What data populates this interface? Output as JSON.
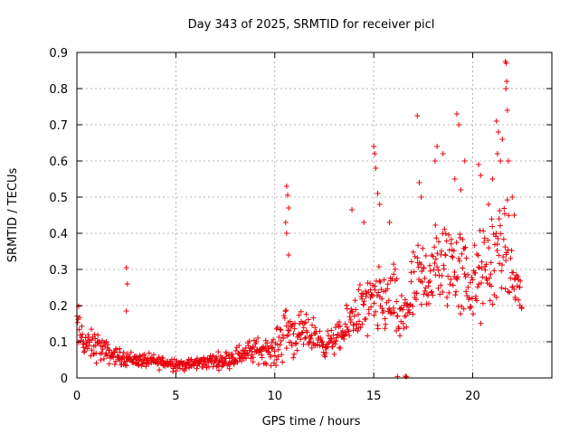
{
  "chart_data": {
    "type": "scatter",
    "title": "Day 343 of 2025, SRMTID for receiver picl",
    "xlabel": "GPS time / hours",
    "ylabel": "SRMTID / TECUs",
    "xlim": [
      0,
      24
    ],
    "ylim": [
      0,
      0.9
    ],
    "xticks": [
      0,
      5,
      10,
      15,
      20
    ],
    "xtick_labels": [
      "0",
      "5",
      "10",
      "15",
      "20"
    ],
    "yticks": [
      0,
      0.1,
      0.2,
      0.3,
      0.4,
      0.5,
      0.6,
      0.7,
      0.8,
      0.9
    ],
    "ytick_labels": [
      "0",
      "0.1",
      "0.2",
      "0.3",
      "0.4",
      "0.5",
      "0.6",
      "0.7",
      "0.8",
      "0.9"
    ],
    "grid": true,
    "marker": "+",
    "color": "#e8000b",
    "series": [
      {
        "name": "SRMTID",
        "envelope": [
          {
            "x": 0.0,
            "y": 0.14,
            "spread": 0.1
          },
          {
            "x": 0.5,
            "y": 0.09,
            "spread": 0.05
          },
          {
            "x": 1.0,
            "y": 0.09,
            "spread": 0.06
          },
          {
            "x": 1.5,
            "y": 0.07,
            "spread": 0.04
          },
          {
            "x": 2.0,
            "y": 0.06,
            "spread": 0.03
          },
          {
            "x": 3.0,
            "y": 0.05,
            "spread": 0.025
          },
          {
            "x": 4.0,
            "y": 0.045,
            "spread": 0.025
          },
          {
            "x": 5.0,
            "y": 0.04,
            "spread": 0.025
          },
          {
            "x": 5.5,
            "y": 0.035,
            "spread": 0.02
          },
          {
            "x": 6.5,
            "y": 0.045,
            "spread": 0.025
          },
          {
            "x": 7.5,
            "y": 0.05,
            "spread": 0.03
          },
          {
            "x": 8.5,
            "y": 0.07,
            "spread": 0.04
          },
          {
            "x": 9.5,
            "y": 0.08,
            "spread": 0.05
          },
          {
            "x": 10.0,
            "y": 0.07,
            "spread": 0.05
          },
          {
            "x": 10.5,
            "y": 0.14,
            "spread": 0.12
          },
          {
            "x": 11.0,
            "y": 0.12,
            "spread": 0.08
          },
          {
            "x": 12.0,
            "y": 0.12,
            "spread": 0.06
          },
          {
            "x": 12.5,
            "y": 0.09,
            "spread": 0.04
          },
          {
            "x": 13.5,
            "y": 0.12,
            "spread": 0.06
          },
          {
            "x": 14.0,
            "y": 0.18,
            "spread": 0.1
          },
          {
            "x": 15.0,
            "y": 0.2,
            "spread": 0.12
          },
          {
            "x": 16.0,
            "y": 0.22,
            "spread": 0.13
          },
          {
            "x": 16.3,
            "y": 0.15,
            "spread": 0.1
          },
          {
            "x": 17.0,
            "y": 0.24,
            "spread": 0.15
          },
          {
            "x": 18.0,
            "y": 0.3,
            "spread": 0.16
          },
          {
            "x": 19.0,
            "y": 0.32,
            "spread": 0.18
          },
          {
            "x": 20.0,
            "y": 0.25,
            "spread": 0.15
          },
          {
            "x": 21.0,
            "y": 0.32,
            "spread": 0.2
          },
          {
            "x": 21.5,
            "y": 0.38,
            "spread": 0.2
          },
          {
            "x": 22.0,
            "y": 0.28,
            "spread": 0.14
          },
          {
            "x": 22.5,
            "y": 0.22,
            "spread": 0.08
          }
        ],
        "n_points": 900,
        "outliers": [
          {
            "x": 2.5,
            "y": 0.305
          },
          {
            "x": 2.55,
            "y": 0.26
          },
          {
            "x": 2.5,
            "y": 0.185
          },
          {
            "x": 10.6,
            "y": 0.53
          },
          {
            "x": 10.65,
            "y": 0.505
          },
          {
            "x": 10.7,
            "y": 0.47
          },
          {
            "x": 10.55,
            "y": 0.43
          },
          {
            "x": 10.6,
            "y": 0.4
          },
          {
            "x": 10.7,
            "y": 0.34
          },
          {
            "x": 13.9,
            "y": 0.465
          },
          {
            "x": 14.5,
            "y": 0.43
          },
          {
            "x": 15.0,
            "y": 0.64
          },
          {
            "x": 15.05,
            "y": 0.62
          },
          {
            "x": 15.1,
            "y": 0.58
          },
          {
            "x": 15.2,
            "y": 0.51
          },
          {
            "x": 15.3,
            "y": 0.48
          },
          {
            "x": 15.8,
            "y": 0.43
          },
          {
            "x": 17.2,
            "y": 0.725
          },
          {
            "x": 17.3,
            "y": 0.54
          },
          {
            "x": 17.4,
            "y": 0.5
          },
          {
            "x": 18.2,
            "y": 0.64
          },
          {
            "x": 18.1,
            "y": 0.6
          },
          {
            "x": 18.5,
            "y": 0.62
          },
          {
            "x": 19.2,
            "y": 0.73
          },
          {
            "x": 19.3,
            "y": 0.7
          },
          {
            "x": 19.1,
            "y": 0.55
          },
          {
            "x": 19.6,
            "y": 0.6
          },
          {
            "x": 19.4,
            "y": 0.52
          },
          {
            "x": 20.3,
            "y": 0.59
          },
          {
            "x": 20.4,
            "y": 0.56
          },
          {
            "x": 20.8,
            "y": 0.48
          },
          {
            "x": 21.0,
            "y": 0.55
          },
          {
            "x": 21.2,
            "y": 0.71
          },
          {
            "x": 21.3,
            "y": 0.68
          },
          {
            "x": 21.25,
            "y": 0.62
          },
          {
            "x": 21.4,
            "y": 0.6
          },
          {
            "x": 21.5,
            "y": 0.66
          },
          {
            "x": 21.65,
            "y": 0.875
          },
          {
            "x": 21.7,
            "y": 0.87
          },
          {
            "x": 21.72,
            "y": 0.82
          },
          {
            "x": 21.68,
            "y": 0.8
          },
          {
            "x": 21.75,
            "y": 0.74
          },
          {
            "x": 21.8,
            "y": 0.6
          },
          {
            "x": 22.0,
            "y": 0.5
          },
          {
            "x": 22.1,
            "y": 0.45
          },
          {
            "x": 16.6,
            "y": 0.005
          },
          {
            "x": 16.65,
            "y": 0.003
          },
          {
            "x": 16.2,
            "y": 0.004
          }
        ]
      }
    ]
  }
}
